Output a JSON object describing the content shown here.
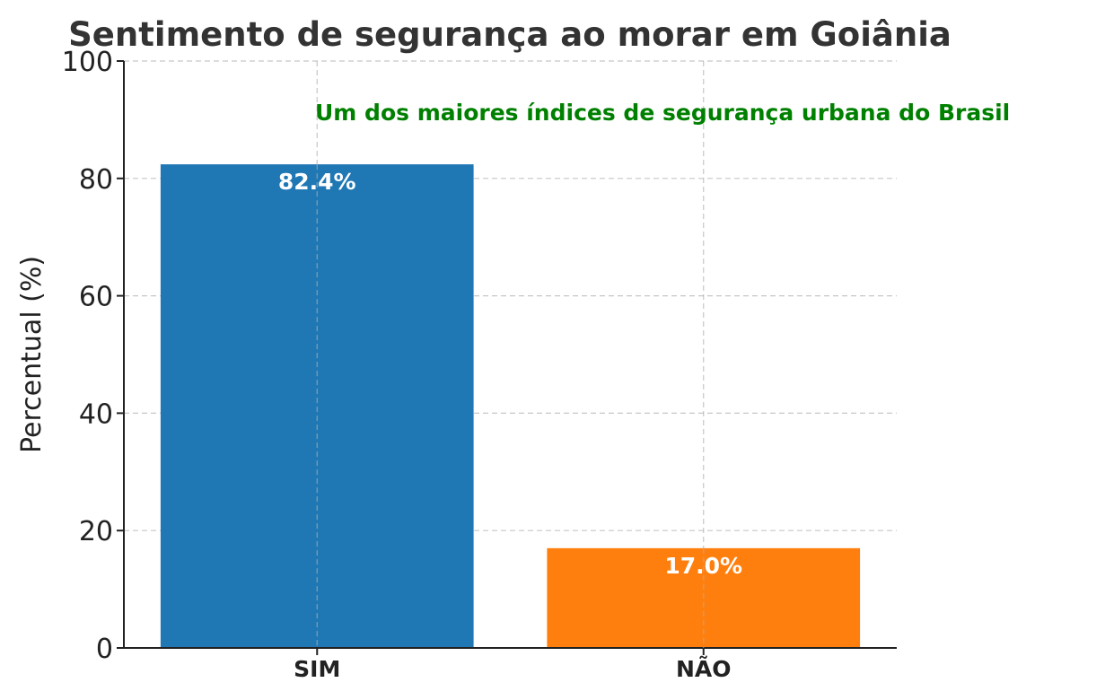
{
  "chart_data": {
    "type": "bar",
    "title": "Sentimento de segurança ao morar em Goiânia",
    "xlabel": "",
    "ylabel": "Percentual (%)",
    "categories": [
      "SIM",
      "NÃO"
    ],
    "values": [
      82.4,
      17.0
    ],
    "value_labels": [
      "82.4%",
      "17.0%"
    ],
    "colors": [
      "#1f77b4",
      "#ff7f0e"
    ],
    "ylim": [
      0,
      100
    ],
    "yticks": [
      0,
      20,
      40,
      60,
      80,
      100
    ],
    "grid": true,
    "annotation": {
      "text": "Um dos maiores índices de segurança urbana do Brasil",
      "color": "#008000"
    }
  }
}
